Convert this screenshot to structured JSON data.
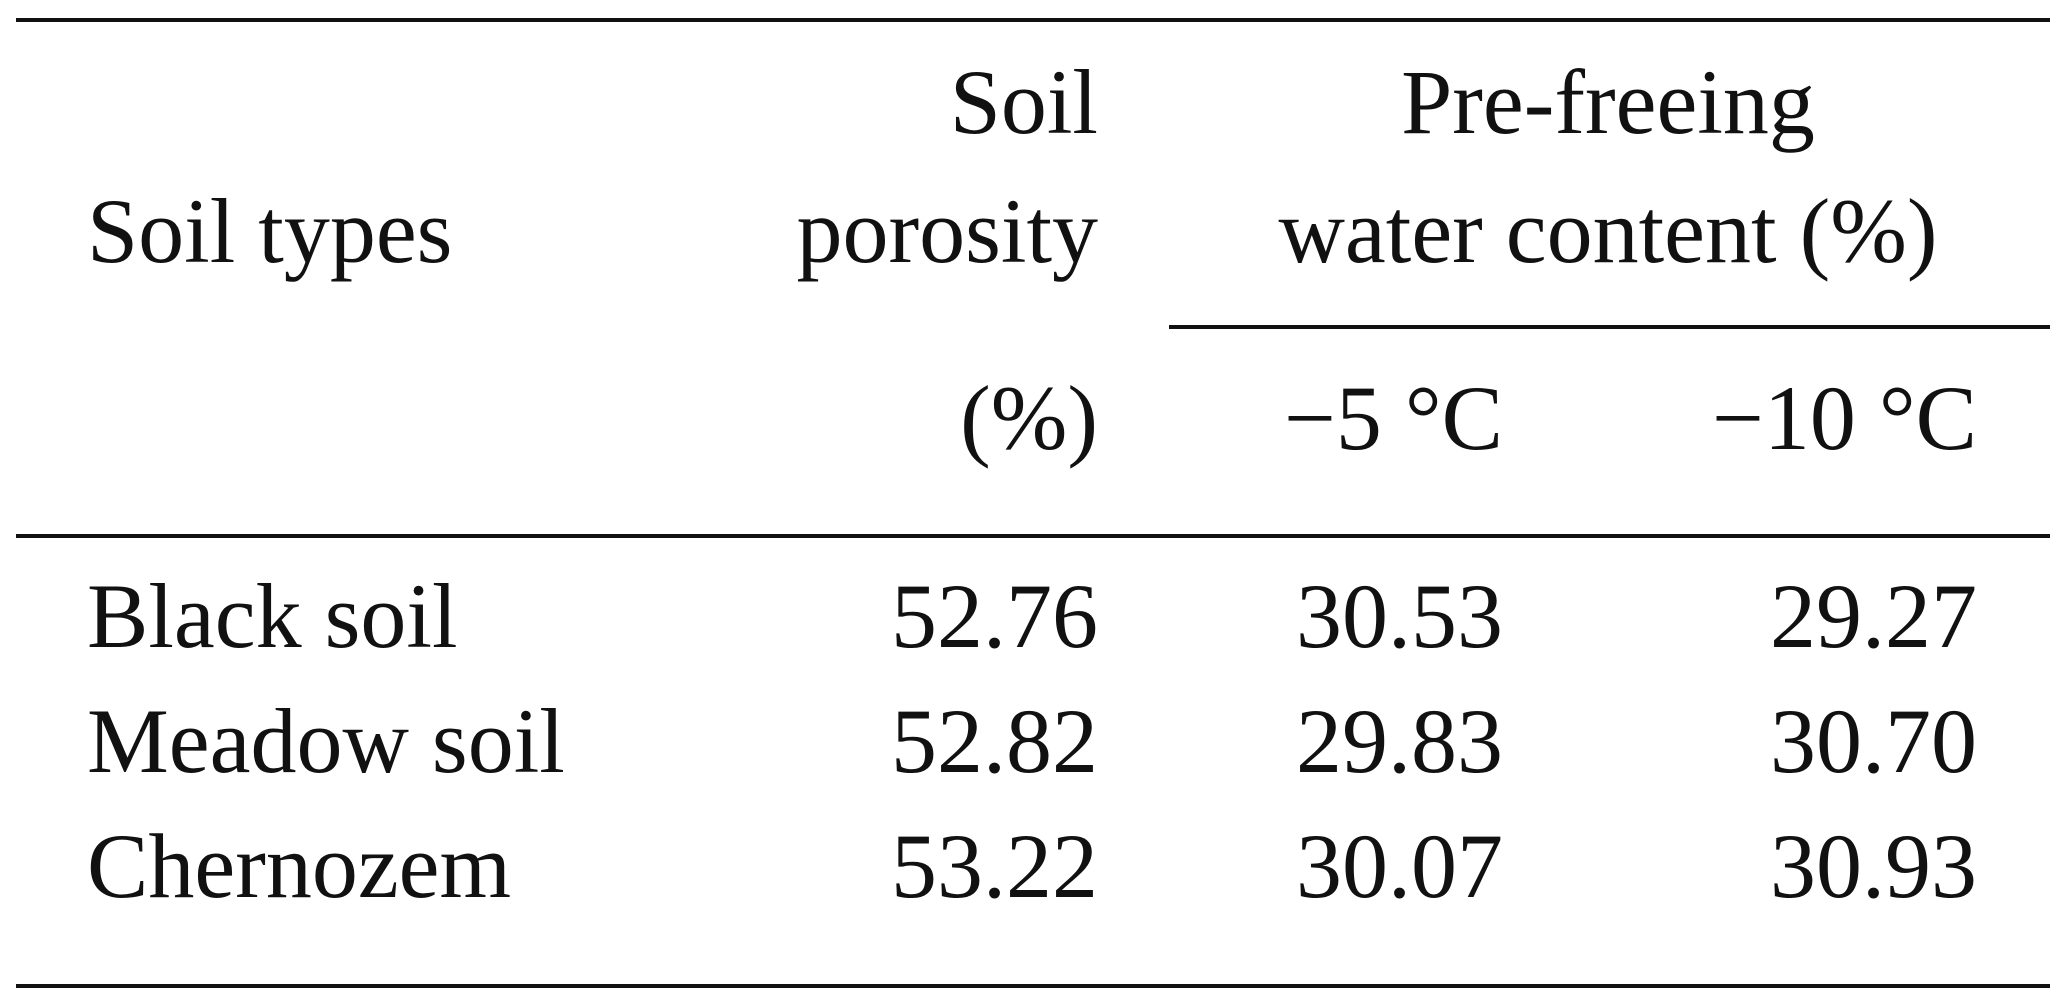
{
  "table": {
    "header": {
      "soil_types": "Soil types",
      "porosity": [
        "Soil",
        "porosity",
        "(%)"
      ],
      "water_content": [
        "Pre-freeing",
        "water content (%)"
      ],
      "subcolumns": [
        "−5 °C",
        "−10 °C"
      ]
    },
    "rows": [
      [
        "Black soil",
        "52.76",
        "30.53",
        "29.27"
      ],
      [
        "Meadow soil",
        "52.82",
        "29.83",
        "30.70"
      ],
      [
        "Chernozem",
        "53.22",
        "30.07",
        "30.93"
      ]
    ]
  }
}
